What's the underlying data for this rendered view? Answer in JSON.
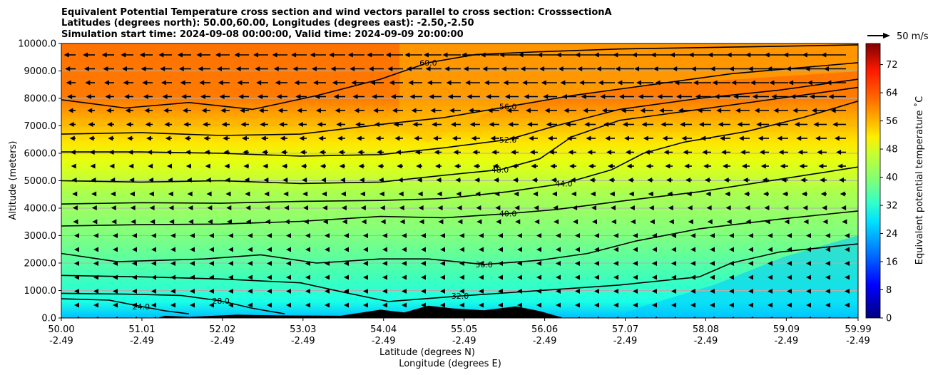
{
  "chart_data": {
    "type": "heatmap",
    "title_lines": [
      "Equivalent Potential Temperature cross section and wind vectors parallel to cross section: CrosssectionA",
      "Latitudes (degrees north): 50.00,60.00, Longitudes (degrees east): -2.50,-2.50",
      "Simulation start time: 2024-09-08 00:00:00, Valid time: 2024-09-09 20:00:00"
    ],
    "ylabel": "Altitude (meters)",
    "xlabel": "Latitude (degrees N)",
    "xlabel2": "Longitude (degrees E)",
    "ylim": [
      0,
      10000
    ],
    "xlim": [
      50.0,
      59.99
    ],
    "y_ticks": [
      "0.0",
      "1000.0",
      "2000.0",
      "3000.0",
      "4000.0",
      "5000.0",
      "6000.0",
      "7000.0",
      "8000.0",
      "9000.0",
      "10000.0"
    ],
    "y_tick_values": [
      0,
      1000,
      2000,
      3000,
      4000,
      5000,
      6000,
      7000,
      8000,
      9000,
      10000
    ],
    "x_ticks": [
      {
        "lat": "50.00",
        "lon": "-2.49",
        "value": 50.0
      },
      {
        "lat": "51.01",
        "lon": "-2.49",
        "value": 51.01
      },
      {
        "lat": "52.02",
        "lon": "-2.49",
        "value": 52.02
      },
      {
        "lat": "53.03",
        "lon": "-2.49",
        "value": 53.03
      },
      {
        "lat": "54.04",
        "lon": "-2.49",
        "value": 54.04
      },
      {
        "lat": "55.05",
        "lon": "-2.49",
        "value": 55.05
      },
      {
        "lat": "56.06",
        "lon": "-2.49",
        "value": 56.06
      },
      {
        "lat": "57.07",
        "lon": "-2.49",
        "value": 57.07
      },
      {
        "lat": "58.08",
        "lon": "-2.49",
        "value": 58.08
      },
      {
        "lat": "59.09",
        "lon": "-2.49",
        "value": 59.09
      },
      {
        "lat": "59.99",
        "lon": "-2.49",
        "value": 59.99
      }
    ],
    "colorbar": {
      "label": "Equivalent potential temperature ˚C",
      "ticks": [
        "0",
        "8",
        "16",
        "24",
        "32",
        "40",
        "48",
        "56",
        "64",
        "72"
      ],
      "tick_values": [
        0,
        8,
        16,
        24,
        32,
        40,
        48,
        56,
        64,
        72
      ],
      "range": [
        0,
        78
      ]
    },
    "wind_key": "50 m/s",
    "contours": [
      {
        "label": "24.0",
        "value": 24,
        "points": [
          [
            50.0,
            700
          ],
          [
            50.6,
            650
          ],
          [
            51.0,
            420
          ],
          [
            51.3,
            260
          ],
          [
            51.6,
            150
          ]
        ]
      },
      {
        "label": "28.0",
        "value": 28,
        "points": [
          [
            50.0,
            900
          ],
          [
            50.8,
            870
          ],
          [
            51.5,
            820
          ],
          [
            52.0,
            620
          ],
          [
            52.4,
            350
          ],
          [
            52.8,
            150
          ]
        ]
      },
      {
        "label": "32.0",
        "value": 32,
        "points": [
          [
            50.0,
            1550
          ],
          [
            51.0,
            1500
          ],
          [
            52.0,
            1420
          ],
          [
            53.0,
            1280
          ],
          [
            53.6,
            900
          ],
          [
            54.1,
            600
          ],
          [
            55.0,
            800
          ],
          [
            56.0,
            1000
          ],
          [
            57.0,
            1200
          ],
          [
            58.0,
            1500
          ],
          [
            58.4,
            2000
          ],
          [
            59.0,
            2400
          ],
          [
            59.99,
            2700
          ]
        ]
      },
      {
        "label": "36.0",
        "value": 36,
        "points": [
          [
            50.0,
            2350
          ],
          [
            50.7,
            2050
          ],
          [
            51.8,
            2150
          ],
          [
            52.5,
            2300
          ],
          [
            53.2,
            2000
          ],
          [
            54.0,
            2150
          ],
          [
            54.6,
            2150
          ],
          [
            55.3,
            1950
          ],
          [
            56.0,
            2100
          ],
          [
            56.6,
            2350
          ],
          [
            57.2,
            2800
          ],
          [
            58.0,
            3250
          ],
          [
            59.0,
            3600
          ],
          [
            59.99,
            3900
          ]
        ]
      },
      {
        "label": "40.0",
        "value": 40,
        "points": [
          [
            50.0,
            3350
          ],
          [
            51.0,
            3400
          ],
          [
            52.0,
            3420
          ],
          [
            53.0,
            3520
          ],
          [
            54.0,
            3700
          ],
          [
            54.8,
            3650
          ],
          [
            55.6,
            3800
          ],
          [
            56.2,
            3950
          ],
          [
            57.0,
            4250
          ],
          [
            58.0,
            4600
          ],
          [
            59.0,
            5050
          ],
          [
            59.99,
            5500
          ]
        ]
      },
      {
        "label": "44.0",
        "value": 44,
        "points": [
          [
            50.0,
            4150
          ],
          [
            51.0,
            4200
          ],
          [
            52.0,
            4180
          ],
          [
            53.0,
            4250
          ],
          [
            54.0,
            4280
          ],
          [
            54.8,
            4350
          ],
          [
            55.6,
            4600
          ],
          [
            56.3,
            4900
          ],
          [
            56.9,
            5400
          ],
          [
            57.3,
            6000
          ],
          [
            57.8,
            6400
          ],
          [
            58.6,
            6800
          ],
          [
            59.3,
            7300
          ],
          [
            59.99,
            7900
          ]
        ]
      },
      {
        "label": "48.0",
        "value": 48,
        "points": [
          [
            50.0,
            5000
          ],
          [
            51.0,
            4950
          ],
          [
            52.0,
            5000
          ],
          [
            53.0,
            4900
          ],
          [
            54.0,
            4950
          ],
          [
            54.8,
            5200
          ],
          [
            55.5,
            5400
          ],
          [
            56.0,
            5800
          ],
          [
            56.4,
            6600
          ],
          [
            57.0,
            7200
          ],
          [
            58.0,
            7600
          ],
          [
            59.0,
            8000
          ],
          [
            59.99,
            8400
          ]
        ]
      },
      {
        "label": "52.0",
        "value": 52,
        "points": [
          [
            50.0,
            6050
          ],
          [
            51.0,
            6050
          ],
          [
            52.0,
            6000
          ],
          [
            53.0,
            5900
          ],
          [
            54.0,
            5950
          ],
          [
            54.8,
            6200
          ],
          [
            55.6,
            6500
          ],
          [
            56.2,
            7000
          ],
          [
            57.0,
            7600
          ],
          [
            58.0,
            8000
          ],
          [
            59.0,
            8300
          ],
          [
            59.99,
            8700
          ]
        ]
      },
      {
        "label": "56.0",
        "value": 56,
        "points": [
          [
            50.0,
            6700
          ],
          [
            51.0,
            6750
          ],
          [
            52.0,
            6650
          ],
          [
            53.0,
            6700
          ],
          [
            54.0,
            7050
          ],
          [
            54.8,
            7300
          ],
          [
            55.6,
            7700
          ],
          [
            56.4,
            8100
          ],
          [
            57.4,
            8500
          ],
          [
            58.4,
            8900
          ],
          [
            59.2,
            9100
          ],
          [
            59.99,
            9300
          ]
        ]
      },
      {
        "label": "60.0",
        "value": 60,
        "points": [
          [
            50.0,
            7950
          ],
          [
            50.8,
            7650
          ],
          [
            51.6,
            7850
          ],
          [
            52.4,
            7600
          ],
          [
            53.2,
            8100
          ],
          [
            54.0,
            8700
          ],
          [
            54.6,
            9300
          ],
          [
            55.2,
            9600
          ],
          [
            56.0,
            9700
          ],
          [
            57.0,
            9800
          ],
          [
            58.0,
            9850
          ],
          [
            59.0,
            9900
          ],
          [
            59.99,
            9950
          ]
        ]
      }
    ],
    "terrain_points": [
      [
        51.2,
        0
      ],
      [
        51.3,
        80
      ],
      [
        51.6,
        40
      ],
      [
        52.2,
        120
      ],
      [
        52.8,
        90
      ],
      [
        53.5,
        80
      ],
      [
        54.0,
        300
      ],
      [
        54.3,
        200
      ],
      [
        54.6,
        450
      ],
      [
        54.9,
        350
      ],
      [
        55.3,
        280
      ],
      [
        55.7,
        420
      ],
      [
        56.0,
        250
      ],
      [
        56.3,
        0
      ]
    ]
  }
}
